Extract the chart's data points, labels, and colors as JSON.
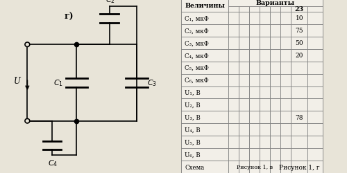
{
  "title": "г)",
  "bg_color": "#e8e4d8",
  "table_bg": "#e8e4d8",
  "rows": [
    "Величины",
    "C₁, мкФ",
    "C₂, мкФ",
    "C₃, мкФ",
    "C₄, мкФ",
    "C₅, мкФ",
    "C₆, мкФ",
    "U₁, В",
    "U₂, В",
    "U₃, В",
    "U₄, В",
    "U₅, В",
    "U₆, В",
    "Схема"
  ],
  "variant_header": "Варианты",
  "variant_col_label": "23",
  "col23_values": [
    "10",
    "75",
    "50",
    "20",
    "",
    "",
    "",
    "",
    "78",
    "",
    "",
    "",
    "Рисунок 1, г"
  ],
  "schema_mid": "Рисунок 1, в"
}
